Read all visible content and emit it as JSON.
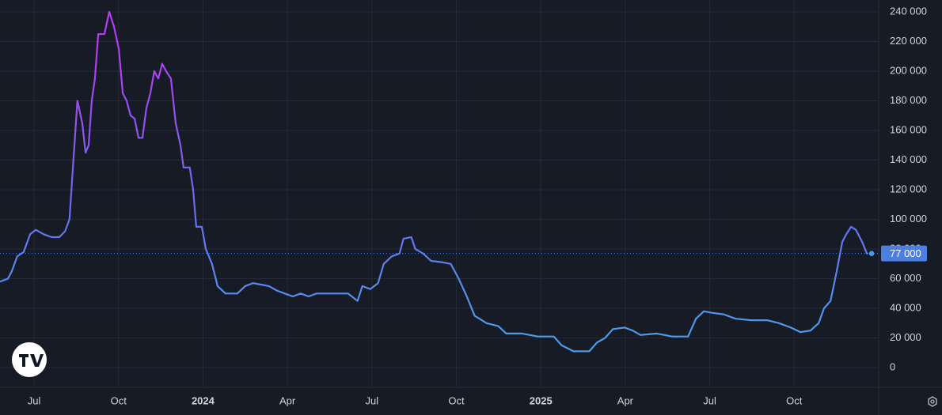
{
  "chart_data": {
    "type": "line",
    "x": [
      -1.21,
      -0.93,
      -0.79,
      -0.6,
      -0.37,
      -0.14,
      0.06,
      0.34,
      0.62,
      0.9,
      1.1,
      1.26,
      1.38,
      1.54,
      1.71,
      1.83,
      1.94,
      2.05,
      2.16,
      2.28,
      2.5,
      2.67,
      2.84,
      3.01,
      3.15,
      3.29,
      3.43,
      3.57,
      3.71,
      3.85,
      3.99,
      4.13,
      4.27,
      4.41,
      4.55,
      4.69,
      4.86,
      5.03,
      5.2,
      5.31,
      5.53,
      5.65,
      5.76,
      5.96,
      6.1,
      6.32,
      6.52,
      6.8,
      7.22,
      7.5,
      7.78,
      8.06,
      8.34,
      8.62,
      8.9,
      9.19,
      9.47,
      9.75,
      10.03,
      10.59,
      11.15,
      11.49,
      11.66,
      11.94,
      12.22,
      12.42,
      12.7,
      12.98,
      13.12,
      13.4,
      13.54,
      13.82,
      14.1,
      14.52,
      14.8,
      15.08,
      15.37,
      15.65,
      16.07,
      16.49,
      16.77,
      17.33,
      17.89,
      18.46,
      18.74,
      19.16,
      19.72,
      20.0,
      20.28,
      20.56,
      20.98,
      21.26,
      21.54,
      22.11,
      22.67,
      23.23,
      23.51,
      23.79,
      24.07,
      24.49,
      24.92,
      25.48,
      26.04,
      26.46,
      26.88,
      27.22,
      27.58,
      27.87,
      28.06,
      28.29,
      28.51,
      28.71,
      28.85,
      29.02,
      29.19,
      29.41,
      29.58,
      29.75
    ],
    "series": [
      {
        "colors": [
          "#b43cf2",
          "#6a6cf0",
          "#4d9be8"
        ],
        "values": [
          58000,
          60000,
          65000,
          75000,
          78000,
          90000,
          93000,
          90000,
          88000,
          88000,
          92000,
          100000,
          135000,
          180000,
          165000,
          145000,
          150000,
          180000,
          195000,
          225000,
          225000,
          240000,
          230000,
          215000,
          185000,
          180000,
          170000,
          168000,
          155000,
          155000,
          175000,
          185000,
          200000,
          195000,
          205000,
          200000,
          195000,
          165000,
          150000,
          135000,
          135000,
          120000,
          95000,
          95000,
          80000,
          70000,
          55000,
          50000,
          50000,
          55000,
          57000,
          56000,
          55000,
          52000,
          50000,
          48000,
          50000,
          48000,
          50000,
          50000,
          50000,
          45000,
          55000,
          53000,
          57000,
          70000,
          75000,
          77000,
          87000,
          88000,
          80000,
          77000,
          72000,
          71000,
          70000,
          60000,
          48000,
          35000,
          30000,
          28000,
          23000,
          23000,
          21000,
          21000,
          15000,
          11000,
          11000,
          17000,
          20000,
          26000,
          27000,
          25000,
          22000,
          23000,
          21000,
          21000,
          33000,
          38000,
          37000,
          36000,
          33000,
          32000,
          32000,
          30000,
          27000,
          24000,
          25000,
          30000,
          40000,
          45000,
          65000,
          85000,
          90000,
          95000,
          93000,
          85000,
          77000,
          77000
        ]
      }
    ],
    "xlim": [
      -1.21,
      30
    ],
    "xticks": [
      {
        "value": 0,
        "label": "Jul"
      },
      {
        "value": 3,
        "label": "Oct"
      },
      {
        "value": 6,
        "label": "2024"
      },
      {
        "value": 9,
        "label": "Apr"
      },
      {
        "value": 12,
        "label": "Jul"
      },
      {
        "value": 15,
        "label": "Oct"
      },
      {
        "value": 18,
        "label": "2025"
      },
      {
        "value": 21,
        "label": "Apr"
      },
      {
        "value": 24,
        "label": "Jul"
      },
      {
        "value": 27,
        "label": "Oct"
      }
    ],
    "ylim": [
      -13300,
      248000
    ],
    "yticks": [
      0,
      {
        "value": 20000,
        "label": "20 000"
      },
      {
        "value": 40000,
        "label": "40 000"
      },
      {
        "value": 60000,
        "label": "60 000"
      },
      {
        "value": 80000,
        "label": "80 000"
      },
      {
        "value": 100000,
        "label": "100 000"
      },
      {
        "value": 120000,
        "label": "120 000"
      },
      {
        "value": 140000,
        "label": "140 000"
      },
      {
        "value": 160000,
        "label": "160 000"
      },
      {
        "value": 180000,
        "label": "180 000"
      },
      {
        "value": 200000,
        "label": "200 000"
      },
      {
        "value": 220000,
        "label": "220 000"
      },
      {
        "value": 240000,
        "label": "240 000"
      }
    ],
    "price_line": {
      "value": 77000,
      "label": "77 000",
      "color": "#4d7fe0"
    },
    "grid": true
  }
}
